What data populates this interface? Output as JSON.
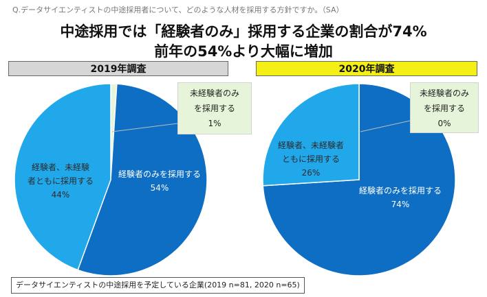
{
  "question": "Q.データサイエンティストの中途採用者について、どのような人材を採用する方針ですか。（SA）",
  "headline": {
    "line1": "中途採用では「経験者のみ」採用する企業の割合が74%",
    "line2": "前年の54%より大幅に増加"
  },
  "footnote": "データサイエンティストの中途採用を予定している企業(2019 n=81, 2020 n=65)",
  "colors": {
    "experienced_only": "#0d6ec4",
    "both": "#21a8ea",
    "inexperienced_only": "#e6f5d9",
    "bar_2019": "#d6d6d6",
    "bar_2020": "#f4ef14"
  },
  "chart_data": [
    {
      "type": "pie",
      "title": "2019年調査",
      "slices": [
        {
          "label_lines": [
            "未経験者のみ",
            "を採用する"
          ],
          "value": 1,
          "value_label": "1%"
        },
        {
          "label_lines": [
            "経験者のみを採用する"
          ],
          "value": 54,
          "value_label": "54%"
        },
        {
          "label_lines": [
            "経験者、未経験",
            "者ともに採用する"
          ],
          "value": 44,
          "value_label": "44%"
        }
      ]
    },
    {
      "type": "pie",
      "title": "2020年調査",
      "slices": [
        {
          "label_lines": [
            "未経験者のみ",
            "を採用する"
          ],
          "value": 0,
          "value_label": "0%"
        },
        {
          "label_lines": [
            "経験者のみを採用する"
          ],
          "value": 74,
          "value_label": "74%"
        },
        {
          "label_lines": [
            "経験者、未経験者",
            "ともに採用する"
          ],
          "value": 26,
          "value_label": "26%"
        }
      ]
    }
  ]
}
